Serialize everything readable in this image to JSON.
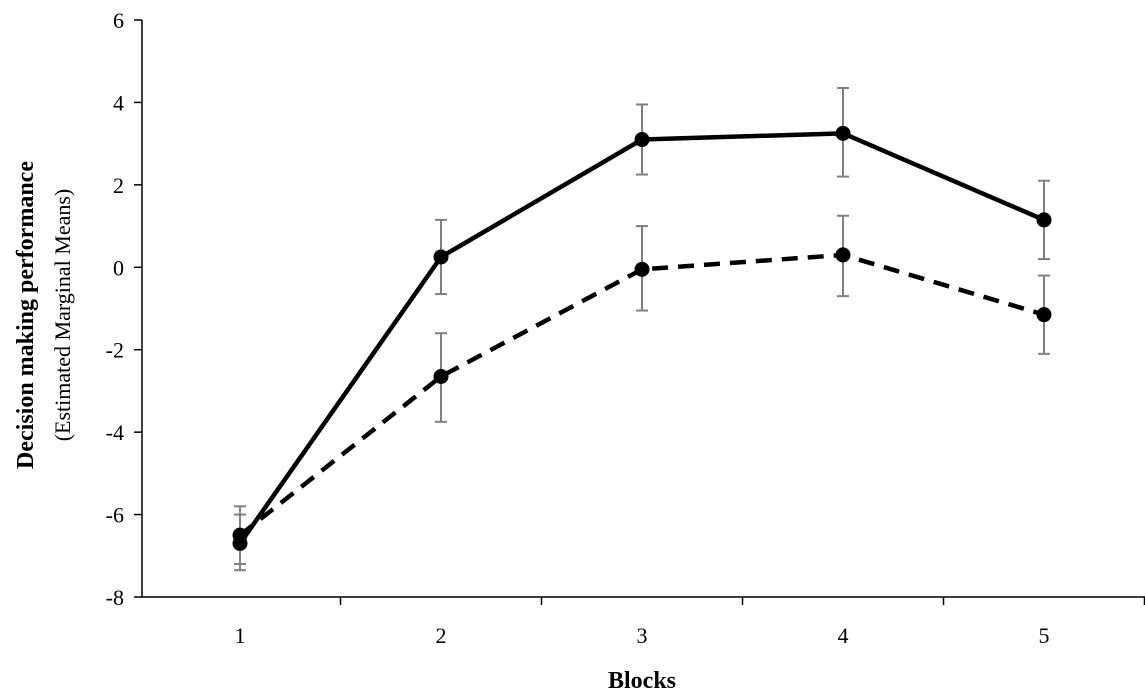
{
  "chart_data": {
    "type": "line",
    "title": "",
    "xlabel": "Blocks",
    "ylabel": "Decision making performance",
    "ylabel_sub": "(Estimated Marginal Means)",
    "x": [
      1,
      2,
      3,
      4,
      5
    ],
    "x_tick_labels": [
      "1",
      "2",
      "3",
      "4",
      "5"
    ],
    "ylim": [
      -8,
      6
    ],
    "y_ticks": [
      -8,
      -6,
      -4,
      -2,
      0,
      2,
      4,
      6
    ],
    "y_tick_labels": [
      "-8",
      "-6",
      "-4",
      "-2",
      "0",
      "2",
      "4",
      "6"
    ],
    "grid": false,
    "legend": "none",
    "series": [
      {
        "style": "solid",
        "color": "#000000",
        "values": [
          -6.7,
          0.25,
          3.1,
          3.25,
          1.15
        ],
        "error_low": [
          -7.35,
          -0.65,
          2.25,
          2.2,
          0.2
        ],
        "error_high": [
          -6.0,
          1.15,
          3.95,
          4.35,
          2.1
        ]
      },
      {
        "style": "dashed",
        "color": "#000000",
        "values": [
          -6.5,
          -2.65,
          -0.05,
          0.3,
          -1.15
        ],
        "error_low": [
          -7.2,
          -3.75,
          -1.05,
          -0.7,
          -2.1
        ],
        "error_high": [
          -5.8,
          -1.6,
          1.0,
          1.25,
          -0.2
        ]
      }
    ],
    "error_bar_color": "#808080"
  }
}
